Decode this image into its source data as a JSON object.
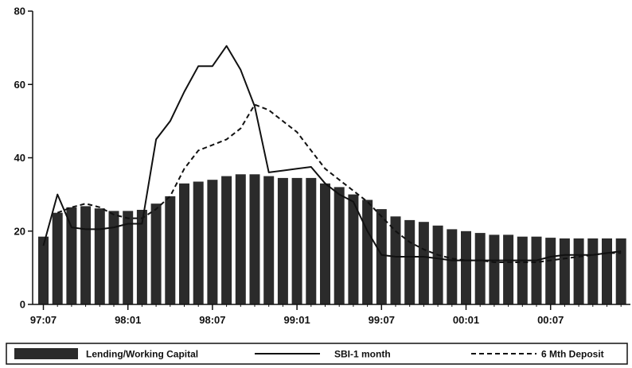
{
  "chart_data": {
    "type": "bar",
    "title": "",
    "xlabel": "",
    "ylabel": "",
    "ylim": [
      0,
      80
    ],
    "yticks": [
      0,
      20,
      40,
      60,
      80
    ],
    "x_tick_labels": [
      "97:07",
      "98:01",
      "98:07",
      "99:01",
      "99:07",
      "00:01",
      "00:07"
    ],
    "categories": [
      "97:07",
      "97:08",
      "97:09",
      "97:10",
      "97:11",
      "97:12",
      "98:01",
      "98:02",
      "98:03",
      "98:04",
      "98:05",
      "98:06",
      "98:07",
      "98:08",
      "98:09",
      "98:10",
      "98:11",
      "98:12",
      "99:01",
      "99:02",
      "99:03",
      "99:04",
      "99:05",
      "99:06",
      "99:07",
      "99:08",
      "99:09",
      "99:10",
      "99:11",
      "99:12",
      "00:01",
      "00:02",
      "00:03",
      "00:04",
      "00:05",
      "00:06",
      "00:07",
      "00:08",
      "00:09",
      "00:10",
      "00:11",
      "00:12"
    ],
    "series": [
      {
        "name": "Lending/Working Capital",
        "kind": "bar",
        "color": "#2b2b2b",
        "values": [
          18.5,
          25,
          26.5,
          26.8,
          26.2,
          25.5,
          25.5,
          25.8,
          27.5,
          29.5,
          33,
          33.5,
          34,
          35,
          35.5,
          35.5,
          35,
          34.5,
          34.5,
          34.5,
          33,
          32,
          30,
          28.5,
          26,
          24,
          23,
          22.5,
          21.5,
          20.5,
          20,
          19.5,
          19,
          19,
          18.5,
          18.5,
          18.2,
          18,
          18,
          18,
          18,
          18
        ]
      },
      {
        "name": "SBI-1 month",
        "kind": "line",
        "dash": "solid",
        "color": "#111111",
        "values": [
          16,
          30,
          21,
          20.5,
          20.5,
          21,
          22,
          22,
          45,
          50,
          58,
          65,
          65,
          70.5,
          64,
          54,
          36,
          36.5,
          37,
          37.5,
          33,
          30,
          28,
          20,
          13.5,
          13,
          13,
          13,
          12.5,
          12,
          12,
          12,
          12,
          12,
          12,
          12,
          13,
          13.5,
          13.5,
          13.5,
          14,
          14.5
        ]
      },
      {
        "name": "6 Mth Deposit",
        "kind": "line",
        "dash": "dashed",
        "color": "#111111",
        "values": [
          null,
          25,
          26.5,
          27.5,
          26.5,
          24.5,
          23.5,
          23.5,
          26,
          29.5,
          37,
          42,
          43.5,
          45,
          48,
          54.5,
          53,
          50,
          47,
          42,
          37,
          34,
          31,
          28,
          24,
          20,
          17,
          15,
          13.5,
          12.5,
          12,
          12,
          11.5,
          11.5,
          11.5,
          11.5,
          12,
          12.5,
          13,
          13.5,
          14,
          14
        ]
      }
    ],
    "legend_placement": "bottom",
    "grid": false
  }
}
